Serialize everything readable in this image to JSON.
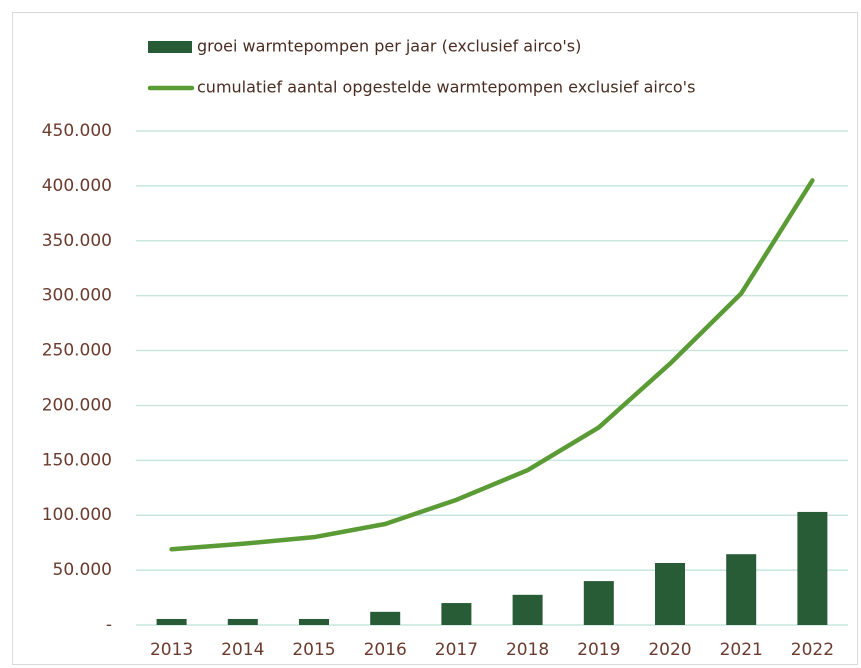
{
  "chart_data": {
    "type": "combo",
    "categories": [
      "2013",
      "2014",
      "2015",
      "2016",
      "2017",
      "2018",
      "2019",
      "2020",
      "2021",
      "2022"
    ],
    "series": [
      {
        "name": "groei warmtepompen per jaar (exclusief airco's)",
        "type": "bar",
        "color": "#285c37",
        "values": [
          5500,
          5500,
          5500,
          12000,
          20000,
          27500,
          40000,
          56500,
          64500,
          103000
        ]
      },
      {
        "name": "cumulatief aantal opgestelde warmtepompen exclusief airco's",
        "type": "line",
        "color": "#5b9b35",
        "values": [
          69000,
          74000,
          80000,
          92000,
          114000,
          141000,
          180000,
          238000,
          302000,
          405000
        ]
      }
    ],
    "ylim": [
      0,
      450000
    ],
    "yticks": [
      {
        "value": 0,
        "label": "-"
      },
      {
        "value": 50000,
        "label": "50.000"
      },
      {
        "value": 100000,
        "label": "100.000"
      },
      {
        "value": 150000,
        "label": "150.000"
      },
      {
        "value": 200000,
        "label": "200.000"
      },
      {
        "value": 250000,
        "label": "250.000"
      },
      {
        "value": 300000,
        "label": "300.000"
      },
      {
        "value": 350000,
        "label": "350.000"
      },
      {
        "value": 400000,
        "label": "400.000"
      },
      {
        "value": 450000,
        "label": "450.000"
      }
    ],
    "grid": true,
    "legend": "top"
  }
}
